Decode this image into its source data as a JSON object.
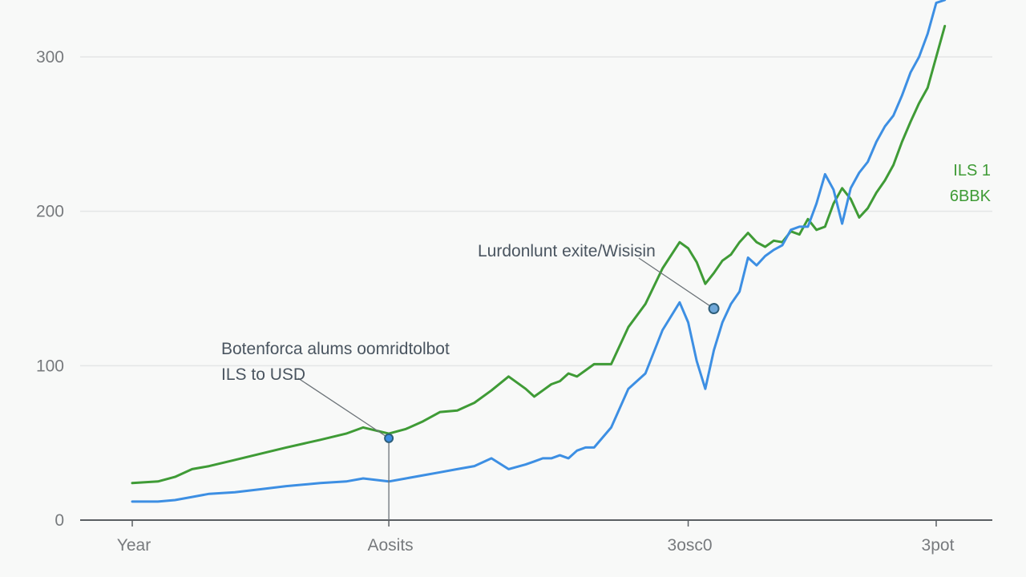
{
  "chart_data": {
    "type": "line",
    "title": "",
    "xlabel": "",
    "ylabel": "",
    "ylim": [
      0,
      300
    ],
    "yticks": [
      0,
      100,
      200,
      300
    ],
    "xlim": [
      0,
      100
    ],
    "xtick_labels": [
      {
        "x": 0,
        "label": "Year"
      },
      {
        "x": 30,
        "label": "Aosits"
      },
      {
        "x": 65,
        "label": "3osc0"
      },
      {
        "x": 94,
        "label": "3pot"
      }
    ],
    "grid": true,
    "series": [
      {
        "color": "#3f9b36",
        "x": [
          0,
          3,
          5,
          7,
          9,
          12,
          15,
          18,
          22,
          25,
          27,
          30,
          32,
          34,
          36,
          38,
          40,
          42,
          44,
          46,
          47,
          48,
          49,
          50,
          51,
          52,
          53,
          54,
          56,
          58,
          60,
          62,
          64,
          65,
          66,
          67,
          68,
          69,
          70,
          71,
          72,
          73,
          74,
          75,
          76,
          77,
          78,
          79,
          80,
          81,
          82,
          83,
          84,
          85,
          86,
          87,
          88,
          89,
          90,
          91,
          92,
          93,
          94,
          95
        ],
        "values": [
          24,
          25,
          28,
          33,
          35,
          39,
          43,
          47,
          52,
          56,
          60,
          56,
          59,
          64,
          70,
          71,
          76,
          84,
          93,
          85,
          80,
          84,
          88,
          90,
          95,
          93,
          97,
          101,
          101,
          125,
          140,
          163,
          180,
          176,
          167,
          153,
          160,
          168,
          172,
          180,
          186,
          180,
          177,
          181,
          180,
          187,
          185,
          195,
          188,
          190,
          205,
          215,
          208,
          196,
          202,
          212,
          220,
          230,
          245,
          258,
          270,
          280,
          300,
          320
        ]
      },
      {
        "color": "#3d8fe3",
        "x": [
          0,
          3,
          5,
          7,
          9,
          12,
          15,
          18,
          22,
          25,
          27,
          30,
          32,
          34,
          36,
          38,
          40,
          42,
          44,
          46,
          47,
          48,
          49,
          50,
          51,
          52,
          53,
          54,
          56,
          58,
          60,
          62,
          64,
          65,
          66,
          67,
          68,
          69,
          70,
          71,
          72,
          73,
          74,
          75,
          76,
          77,
          78,
          79,
          80,
          81,
          82,
          83,
          84,
          85,
          86,
          87,
          88,
          89,
          90,
          91,
          92,
          93,
          94,
          95
        ],
        "values": [
          12,
          12,
          13,
          15,
          17,
          18,
          20,
          22,
          24,
          25,
          27,
          25,
          27,
          29,
          31,
          33,
          35,
          40,
          33,
          36,
          38,
          40,
          40,
          42,
          40,
          45,
          47,
          47,
          60,
          85,
          95,
          123,
          141,
          128,
          103,
          85,
          110,
          128,
          140,
          148,
          170,
          165,
          171,
          175,
          178,
          188,
          190,
          190,
          205,
          224,
          214,
          192,
          215,
          225,
          232,
          245,
          255,
          262,
          275,
          290,
          300,
          315,
          335,
          350
        ]
      }
    ],
    "annotations": [
      {
        "text": "Botenforca alums oomridtolbot",
        "point_x": 30,
        "point_y": 53
      },
      {
        "text": "ILS to USD",
        "point_x": 30,
        "point_y": 53
      },
      {
        "text": "Lurdonlunt exite/Wisisin",
        "point_x": 68,
        "point_y": 137
      }
    ],
    "legend": {
      "placement": "right",
      "entries": [
        "ILS 1",
        "6BBK"
      ]
    }
  }
}
